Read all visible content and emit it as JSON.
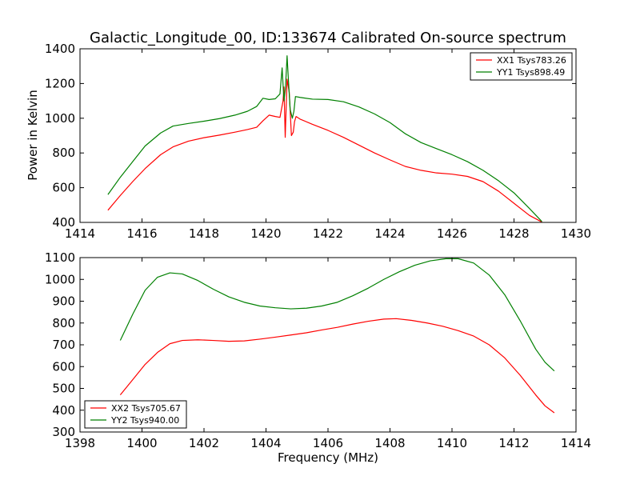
{
  "figure": {
    "title": "Galactic_Longitude_00, ID:133674 Calibrated On-source spectrum"
  },
  "chart_data": [
    {
      "type": "line",
      "xlim": [
        1414,
        1430
      ],
      "ylim": [
        400,
        1400
      ],
      "xticks": [
        1414,
        1416,
        1418,
        1420,
        1422,
        1424,
        1426,
        1428,
        1430
      ],
      "yticks": [
        400,
        600,
        800,
        1000,
        1200,
        1400
      ],
      "xlabel": "",
      "ylabel": "Power in Kelvin",
      "grid": false,
      "legend_position": "top-right",
      "series": [
        {
          "name": "XX1 Tsys783.26",
          "color": "#ff0000",
          "x": [
            1414.9,
            1415.3,
            1415.7,
            1416.1,
            1416.6,
            1417.0,
            1417.5,
            1418.0,
            1418.5,
            1419.0,
            1419.4,
            1419.7,
            1419.9,
            1420.1,
            1420.3,
            1420.45,
            1420.55,
            1420.58,
            1420.62,
            1420.68,
            1420.75,
            1420.82,
            1420.88,
            1420.92,
            1420.97,
            1421.1,
            1421.5,
            1422.0,
            1422.5,
            1423.0,
            1423.5,
            1424.0,
            1424.5,
            1425.0,
            1425.5,
            1426.0,
            1426.5,
            1427.0,
            1427.5,
            1428.0,
            1428.5,
            1428.9
          ],
          "y": [
            470,
            555,
            635,
            710,
            790,
            835,
            868,
            888,
            903,
            920,
            935,
            948,
            985,
            1018,
            1010,
            1005,
            1100,
            1180,
            890,
            1225,
            1150,
            900,
            920,
            980,
            1010,
            995,
            965,
            930,
            890,
            845,
            800,
            760,
            722,
            700,
            685,
            678,
            665,
            635,
            580,
            510,
            440,
            402
          ]
        },
        {
          "name": "YY1 Tsys898.49",
          "color": "#008000",
          "x": [
            1414.9,
            1415.3,
            1415.7,
            1416.1,
            1416.6,
            1417.0,
            1417.5,
            1418.0,
            1418.5,
            1419.0,
            1419.4,
            1419.7,
            1419.9,
            1420.1,
            1420.3,
            1420.45,
            1420.52,
            1420.58,
            1420.63,
            1420.68,
            1420.72,
            1420.78,
            1420.85,
            1420.9,
            1420.95,
            1421.1,
            1421.5,
            1422.0,
            1422.5,
            1423.0,
            1423.5,
            1424.0,
            1424.5,
            1425.0,
            1425.5,
            1426.0,
            1426.5,
            1427.0,
            1427.5,
            1428.0,
            1428.5,
            1428.9
          ],
          "y": [
            560,
            660,
            750,
            840,
            915,
            955,
            970,
            983,
            998,
            1018,
            1040,
            1068,
            1115,
            1108,
            1112,
            1140,
            1290,
            1100,
            1180,
            1360,
            1230,
            1050,
            1000,
            1040,
            1125,
            1120,
            1110,
            1108,
            1095,
            1065,
            1025,
            975,
            910,
            860,
            825,
            790,
            750,
            700,
            640,
            570,
            480,
            405
          ]
        }
      ]
    },
    {
      "type": "line",
      "xlim": [
        1398,
        1414
      ],
      "ylim": [
        300,
        1100
      ],
      "xticks": [
        1398,
        1400,
        1402,
        1404,
        1406,
        1408,
        1410,
        1412,
        1414
      ],
      "yticks": [
        300,
        400,
        500,
        600,
        700,
        800,
        900,
        1000,
        1100
      ],
      "xlabel": "Frequency (MHz)",
      "ylabel": "",
      "grid": false,
      "legend_position": "bottom-left",
      "series": [
        {
          "name": "XX2 Tsys705.67",
          "color": "#ff0000",
          "x": [
            1399.3,
            1399.7,
            1400.1,
            1400.5,
            1400.9,
            1401.3,
            1401.8,
            1402.3,
            1402.8,
            1403.3,
            1403.8,
            1404.3,
            1404.8,
            1405.3,
            1405.8,
            1406.3,
            1406.8,
            1407.3,
            1407.8,
            1408.2,
            1408.7,
            1409.2,
            1409.7,
            1410.2,
            1410.7,
            1411.2,
            1411.7,
            1412.2,
            1412.7,
            1413.0,
            1413.3
          ],
          "y": [
            470,
            540,
            610,
            665,
            705,
            720,
            723,
            720,
            716,
            718,
            726,
            735,
            745,
            755,
            768,
            780,
            795,
            808,
            818,
            820,
            812,
            800,
            785,
            765,
            740,
            700,
            640,
            560,
            470,
            420,
            388
          ]
        },
        {
          "name": "YY2 Tsys940.00",
          "color": "#008000",
          "x": [
            1399.3,
            1399.7,
            1400.1,
            1400.5,
            1400.9,
            1401.3,
            1401.8,
            1402.3,
            1402.8,
            1403.3,
            1403.8,
            1404.3,
            1404.8,
            1405.3,
            1405.8,
            1406.3,
            1406.8,
            1407.3,
            1407.8,
            1408.3,
            1408.8,
            1409.3,
            1409.8,
            1410.2,
            1410.7,
            1411.2,
            1411.7,
            1412.2,
            1412.7,
            1413.0,
            1413.3
          ],
          "y": [
            720,
            840,
            950,
            1010,
            1030,
            1025,
            995,
            955,
            920,
            895,
            878,
            870,
            865,
            868,
            878,
            895,
            925,
            960,
            1000,
            1035,
            1065,
            1085,
            1095,
            1095,
            1075,
            1020,
            930,
            810,
            680,
            620,
            580
          ]
        }
      ]
    }
  ]
}
